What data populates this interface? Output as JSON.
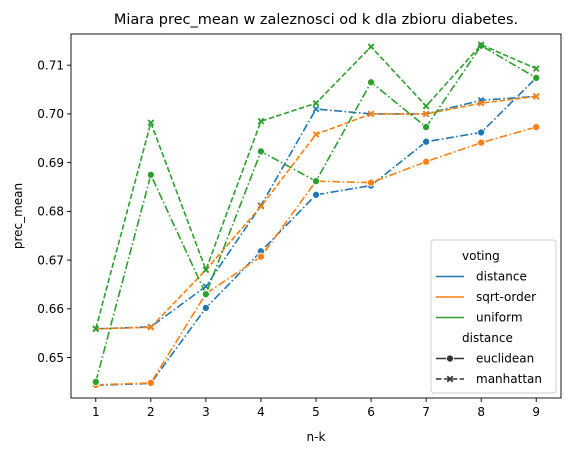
{
  "chart_data": {
    "type": "line",
    "title": "Miara prec_mean w zaleznosci od k dla zbioru diabetes.",
    "xlabel": "n-k",
    "ylabel": "prec_mean",
    "xlim": [
      0.55,
      9.45
    ],
    "ylim": [
      0.6417,
      0.7164
    ],
    "xticks": [
      "1",
      "2",
      "3",
      "4",
      "5",
      "6",
      "7",
      "8",
      "9"
    ],
    "yticks": [
      "0.65",
      "0.66",
      "0.67",
      "0.68",
      "0.69",
      "0.70",
      "0.71"
    ],
    "x": [
      1,
      2,
      3,
      4,
      5,
      6,
      7,
      8,
      9
    ],
    "grid": false,
    "legend_position": "lower-right",
    "legend": {
      "hue_title": "voting",
      "style_title": "distance",
      "hue_entries": [
        {
          "label": "distance",
          "color": "#1f77b4"
        },
        {
          "label": "sqrt-order",
          "color": "#ff7f0e"
        },
        {
          "label": "uniform",
          "color": "#2ca02c"
        }
      ],
      "style_entries": [
        {
          "label": "euclidean",
          "marker": "circle",
          "dash": "solid"
        },
        {
          "label": "manhattan",
          "marker": "x",
          "dash": "dashed"
        }
      ]
    },
    "series": [
      {
        "voting": "distance",
        "distance": "euclidean",
        "color": "#1f77b4",
        "dash": "dashdot",
        "marker": "circle",
        "values": [
          0.6443,
          0.6447,
          0.6602,
          0.6718,
          0.6834,
          0.6853,
          0.6943,
          0.6962,
          0.7074
        ]
      },
      {
        "voting": "distance",
        "distance": "manhattan",
        "color": "#1f77b4",
        "dash": "dashdot",
        "marker": "x",
        "values": [
          0.6559,
          0.6563,
          0.6646,
          0.6812,
          0.701,
          0.7,
          0.7,
          0.7028,
          0.7036
        ]
      },
      {
        "voting": "sqrt-order",
        "distance": "euclidean",
        "color": "#ff7f0e",
        "dash": "dashdot",
        "marker": "circle",
        "values": [
          0.6444,
          0.6448,
          0.6631,
          0.6707,
          0.6862,
          0.6859,
          0.6902,
          0.6941,
          0.6973
        ]
      },
      {
        "voting": "sqrt-order",
        "distance": "manhattan",
        "color": "#ff7f0e",
        "dash": "dashed",
        "marker": "x",
        "values": [
          0.6559,
          0.6562,
          0.668,
          0.681,
          0.6958,
          0.7,
          0.7,
          0.7022,
          0.7036
        ]
      },
      {
        "voting": "uniform",
        "distance": "euclidean",
        "color": "#2ca02c",
        "dash": "dashdot",
        "marker": "circle",
        "values": [
          0.645,
          0.6875,
          0.663,
          0.6923,
          0.6862,
          0.7065,
          0.6973,
          0.714,
          0.7074
        ]
      },
      {
        "voting": "uniform",
        "distance": "manhattan",
        "color": "#2ca02c",
        "dash": "dashed",
        "marker": "x",
        "values": [
          0.6559,
          0.6982,
          0.668,
          0.6985,
          0.7022,
          0.7138,
          0.7016,
          0.7142,
          0.7093
        ]
      }
    ]
  }
}
